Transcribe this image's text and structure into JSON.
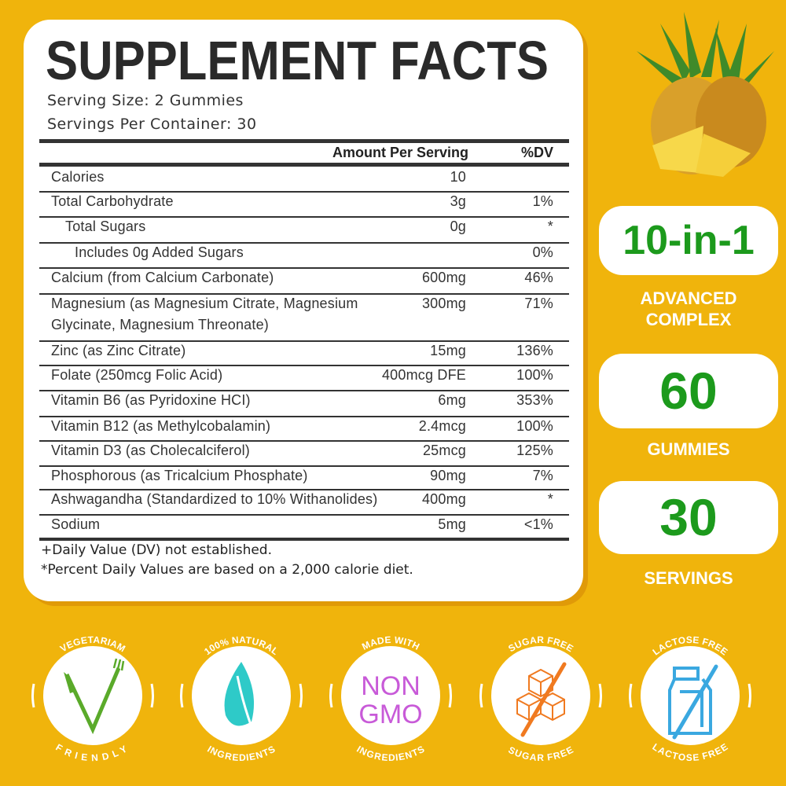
{
  "title": "SUPPLEMENT FACTS",
  "serving_size": "Serving Size: 2 Gummies",
  "servings_per_container": "Servings Per Container: 30",
  "table": {
    "headers": {
      "amount": "Amount Per Serving",
      "dv": "%DV"
    },
    "rows": [
      {
        "name": "Calories",
        "amount": "10",
        "dv": ""
      },
      {
        "name": "Total Carbohydrate",
        "amount": "3g",
        "dv": "1%"
      },
      {
        "name": "Total Sugars",
        "amount": "0g",
        "dv": "*"
      },
      {
        "name": "Includes 0g Added Sugars",
        "amount": "",
        "dv": "0%"
      },
      {
        "name": "Calcium (from Calcium Carbonate)",
        "amount": "600mg",
        "dv": "46%"
      },
      {
        "name": "Magnesium (as Magnesium Citrate, Magnesium",
        "name2": "Glycinate, Magnesium Threonate)",
        "amount": "300mg",
        "dv": "71%"
      },
      {
        "name": "Zinc (as Zinc Citrate)",
        "amount": "15mg",
        "dv": "136%"
      },
      {
        "name": "Folate (250mcg Folic Acid)",
        "amount": "400mcg DFE",
        "dv": "100%"
      },
      {
        "name": "Vitamin B6 (as Pyridoxine HCI)",
        "amount": "6mg",
        "dv": "353%"
      },
      {
        "name": "Vitamin B12 (as Methylcobalamin)",
        "amount": "2.4mcg",
        "dv": "100%"
      },
      {
        "name": "Vitamin D3 (as Cholecalciferol)",
        "amount": "25mcg",
        "dv": "125%"
      },
      {
        "name": "Phosphorous (as Tricalcium Phosphate)",
        "amount": "90mg",
        "dv": "7%"
      },
      {
        "name": "Ashwagandha (Standardized to 10% Withanolides)",
        "amount": "400mg",
        "dv": "*"
      },
      {
        "name": "Sodium",
        "amount": "5mg",
        "dv": "<1%"
      }
    ],
    "footnotes": [
      "+Daily Value (DV) not established.",
      "*Percent Daily Values are based on a 2,000 calorie diet."
    ]
  },
  "highlights": [
    {
      "value": "10-in-1",
      "label": "ADVANCED",
      "label2": "COMPLEX"
    },
    {
      "value": "60",
      "label": "GUMMIES"
    },
    {
      "value": "30",
      "label": "SERVINGS"
    }
  ],
  "badges": [
    {
      "top": "VEGETARIAM",
      "bottom": "FRIENDLY",
      "icon": "vegetarian-fork-knife-icon",
      "color": "#5aaa2a"
    },
    {
      "top": "100% NATURAL",
      "bottom": "INGREDIENTS",
      "icon": "leaf-icon",
      "color": "#2ecac8"
    },
    {
      "top": "MADE WITH",
      "bottom": "INGREDIENTS",
      "icon_text": [
        "NON",
        "GMO"
      ],
      "icon": "non-gmo-icon",
      "color": "#c85ad8"
    },
    {
      "top": "SUGAR FREE",
      "bottom": "SUGAR FREE",
      "icon": "sugar-cubes-crossed-icon",
      "color": "#f07a20"
    },
    {
      "top": "LACTOSE FREE",
      "bottom": "LACTOSE FREE",
      "icon": "milk-carton-crossed-icon",
      "color": "#3aa8e0"
    }
  ],
  "colors": {
    "background": "#f0b40c",
    "accent_green": "#1c9a1c"
  }
}
